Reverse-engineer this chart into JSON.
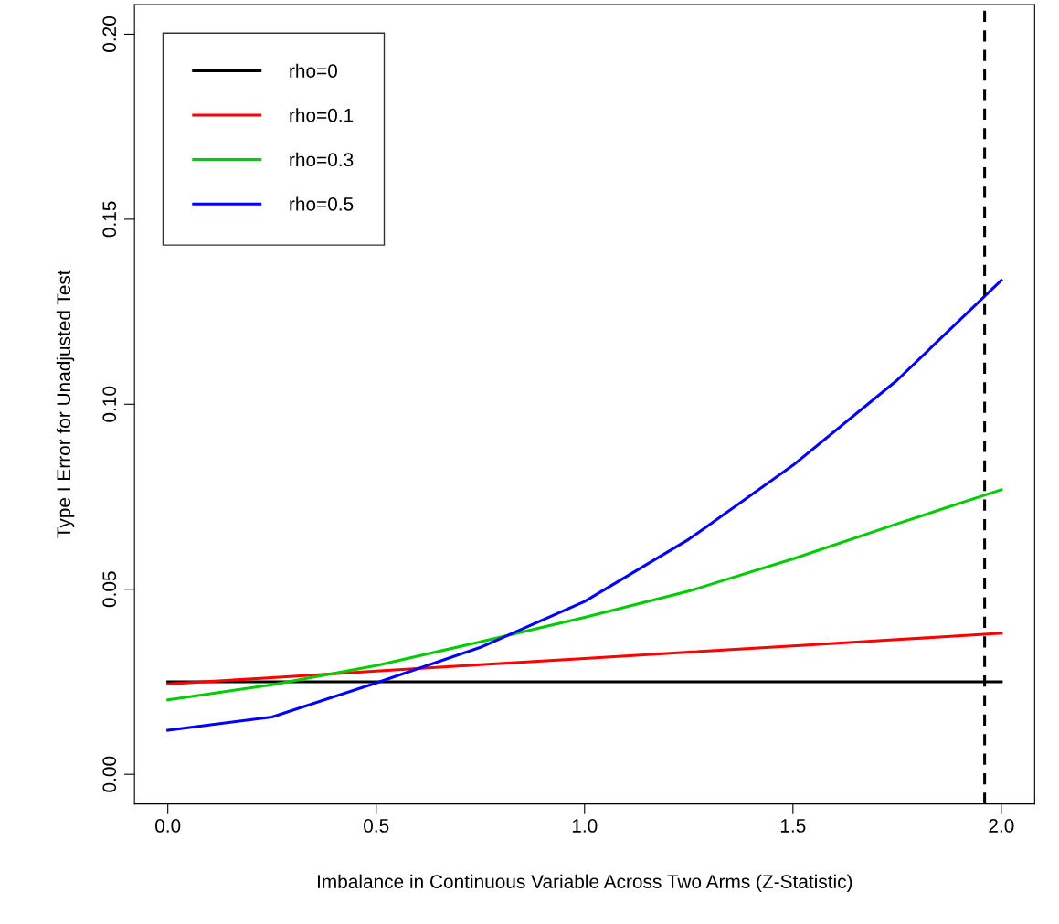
{
  "chart_data": {
    "type": "line",
    "xlabel": "Imbalance in Continuous Variable Across Two Arms (Z-Statistic)",
    "ylabel": "Type I Error for Unadjusted Test",
    "x": [
      0,
      0.25,
      0.5,
      0.75,
      1.0,
      1.25,
      1.5,
      1.75,
      2.0
    ],
    "series": [
      {
        "name": "rho=0",
        "color": "#000000",
        "values": [
          0.025,
          0.025,
          0.025,
          0.025,
          0.025,
          0.025,
          0.025,
          0.025,
          0.025
        ]
      },
      {
        "name": "rho=0.1",
        "color": "#ff0000",
        "values": [
          0.0244,
          0.0261,
          0.0279,
          0.0296,
          0.0313,
          0.033,
          0.0347,
          0.0364,
          0.0381
        ]
      },
      {
        "name": "rho=0.3",
        "color": "#00cd00",
        "values": [
          0.0201,
          0.0242,
          0.0294,
          0.0358,
          0.0424,
          0.0495,
          0.0582,
          0.0677,
          0.0769
        ]
      },
      {
        "name": "rho=0.5",
        "color": "#0000ff",
        "values": [
          0.0119,
          0.0155,
          0.0247,
          0.0343,
          0.0467,
          0.0635,
          0.0835,
          0.1065,
          0.1335
        ]
      }
    ],
    "xlim": [
      -0.08,
      2.08
    ],
    "ylim": [
      -0.008,
      0.208
    ],
    "xticks": [
      {
        "value": 0,
        "label": "0.0"
      },
      0.5,
      {
        "value": 1,
        "label": "1.0"
      },
      1.5,
      {
        "value": 2,
        "label": "2.0"
      }
    ],
    "yticks": [
      {
        "value": 0,
        "label": "0.00"
      },
      0.05,
      {
        "value": 0.1,
        "label": "0.10"
      },
      0.15,
      {
        "value": 0.2,
        "label": "0.20"
      }
    ],
    "ref_lines": [
      {
        "axis": "x",
        "value": 1.96,
        "color": "#000000",
        "line_style": "dashed"
      }
    ],
    "legend": "top left",
    "grid": false,
    "line_style": "solid"
  }
}
